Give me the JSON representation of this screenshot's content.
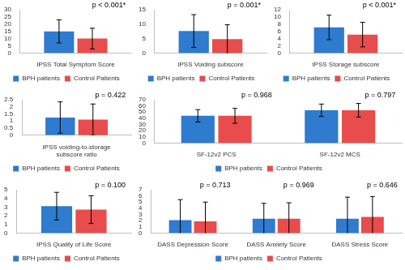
{
  "chart_data": [
    {
      "type": "bar",
      "categories": [
        "IPSS Total Symptom Score"
      ],
      "series": [
        {
          "name": "BPH patients",
          "color": "#2e7bcf",
          "values": [
            15.0
          ],
          "errors": [
            8.0
          ]
        },
        {
          "name": "Control Patients",
          "color": "#e84c4c",
          "values": [
            10.0
          ],
          "errors": [
            7.2
          ]
        }
      ],
      "ylim": [
        0,
        30
      ],
      "yticks": [
        0,
        5,
        10,
        15,
        20,
        25,
        30
      ],
      "grid": false,
      "legend": "bottom",
      "annotations": [
        {
          "category": "IPSS Total Symptom Score",
          "text": "p < 0.001*"
        }
      ]
    },
    {
      "type": "bar",
      "categories": [
        "IPSS Voiding subscore"
      ],
      "series": [
        {
          "name": "BPH patients",
          "color": "#2e7bcf",
          "values": [
            7.6
          ],
          "errors": [
            5.7
          ]
        },
        {
          "name": "Control Patients",
          "color": "#e84c4c",
          "values": [
            4.8
          ],
          "errors": [
            5.0
          ]
        }
      ],
      "ylim": [
        0,
        15
      ],
      "yticks": [
        0,
        5,
        10,
        15
      ],
      "grid": false,
      "legend": "bottom",
      "annotations": [
        {
          "category": "IPSS Voiding subscore",
          "text": "p = 0.001*"
        }
      ]
    },
    {
      "type": "bar",
      "categories": [
        "IPSS Storage subscore"
      ],
      "series": [
        {
          "name": "BPH patients",
          "color": "#2e7bcf",
          "values": [
            7.1
          ],
          "errors": [
            3.4
          ]
        },
        {
          "name": "Control Patients",
          "color": "#e84c4c",
          "values": [
            5.1
          ],
          "errors": [
            3.4
          ]
        }
      ],
      "ylim": [
        0,
        12
      ],
      "yticks": [
        0,
        2,
        4,
        6,
        8,
        10,
        12
      ],
      "grid": false,
      "legend": "bottom",
      "annotations": [
        {
          "category": "IPSS Storage subscore",
          "text": "p < 0.001*"
        }
      ]
    },
    {
      "type": "bar",
      "categories": [
        "IPSS voiding-to-storage subscore ratio"
      ],
      "series": [
        {
          "name": "BPH patients",
          "color": "#2e7bcf",
          "values": [
            1.25
          ],
          "errors": [
            1.1
          ]
        },
        {
          "name": "Control Patients",
          "color": "#e84c4c",
          "values": [
            1.1
          ],
          "errors": [
            1.1
          ]
        }
      ],
      "ylim": [
        0,
        2.5
      ],
      "yticks": [
        0,
        0.5,
        1,
        1.5,
        2,
        2.5
      ],
      "grid": false,
      "legend": "bottom",
      "annotations": [
        {
          "category": "IPSS voiding-to-storage subscore ratio",
          "text": "p = 0.422"
        }
      ]
    },
    {
      "type": "bar",
      "categories": [
        "SF-12v2 PCS",
        "SF-12v2 MCS"
      ],
      "series": [
        {
          "name": "BPH patients",
          "color": "#2e7bcf",
          "values": [
            44,
            53
          ],
          "errors": [
            10,
            10
          ]
        },
        {
          "name": "Control Patients",
          "color": "#e84c4c",
          "values": [
            44,
            53
          ],
          "errors": [
            12,
            11
          ]
        }
      ],
      "ylim": [
        0,
        70
      ],
      "yticks": [
        0,
        10,
        20,
        30,
        40,
        50,
        60,
        70
      ],
      "grid": false,
      "legend": "bottom",
      "annotations": [
        {
          "category": "SF-12v2 PCS",
          "text": "p = 0.968"
        },
        {
          "category": "SF-12v2 MCS",
          "text": "p = 0.797"
        }
      ]
    },
    {
      "type": "bar",
      "categories": [
        "IPSS Quality of Life Score"
      ],
      "series": [
        {
          "name": "BPH patients",
          "color": "#2e7bcf",
          "values": [
            3.1
          ],
          "errors": [
            1.6
          ]
        },
        {
          "name": "Control Patients",
          "color": "#e84c4c",
          "values": [
            2.7
          ],
          "errors": [
            1.6
          ]
        }
      ],
      "ylim": [
        0,
        5
      ],
      "yticks": [
        0,
        1,
        2,
        3,
        4,
        5
      ],
      "grid": false,
      "legend": "bottom",
      "annotations": [
        {
          "category": "IPSS Quality of Life Score",
          "text": "p = 0.100"
        }
      ]
    },
    {
      "type": "bar",
      "categories": [
        "DASS Depression Score",
        "DASS Anxiety Score",
        "DASS Stress Score"
      ],
      "series": [
        {
          "name": "BPH patients",
          "color": "#2e7bcf",
          "values": [
            2.1,
            2.3,
            2.3
          ],
          "errors": [
            3.3,
            2.5,
            3.5
          ]
        },
        {
          "name": "Control Patients",
          "color": "#e84c4c",
          "values": [
            1.9,
            2.3,
            2.6
          ],
          "errors": [
            3.1,
            2.6,
            3.3
          ]
        }
      ],
      "ylim": [
        0,
        7
      ],
      "yticks": [
        0,
        1,
        2,
        3,
        4,
        5,
        6,
        7
      ],
      "grid": false,
      "legend": "bottom",
      "annotations": [
        {
          "category": "DASS Depression Score",
          "text": "p = 0.713"
        },
        {
          "category": "DASS Anxiety Score",
          "text": "p = 0.969"
        },
        {
          "category": "DASS Stress Score",
          "text": "p = 0.646"
        }
      ]
    }
  ]
}
